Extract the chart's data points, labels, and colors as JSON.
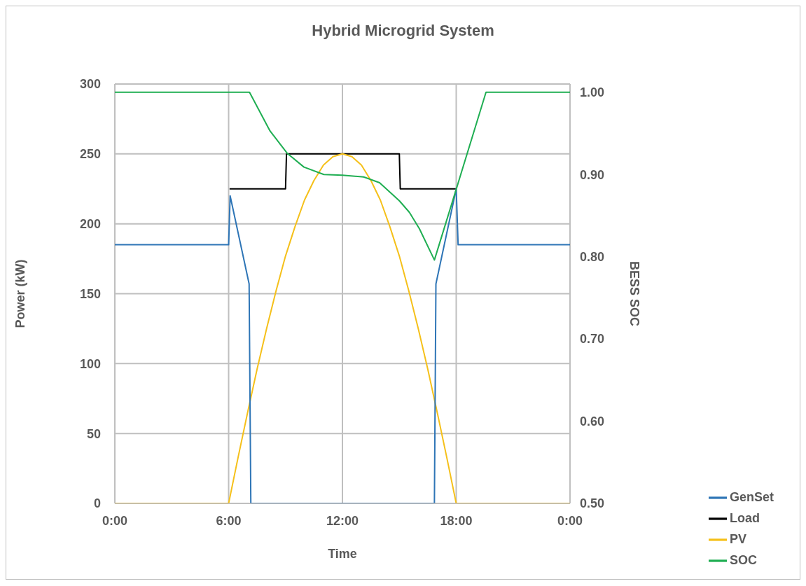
{
  "chart_data": {
    "type": "line",
    "title": "Hybrid Microgrid System",
    "xlabel": "Time",
    "ylabel": "Power (kW)",
    "y2label": "BESS SOC",
    "xlim": [
      0,
      24
    ],
    "xticks": [
      {
        "value": 0,
        "label": "0:00"
      },
      {
        "value": 6,
        "label": "6:00"
      },
      {
        "value": 12,
        "label": "12:00"
      },
      {
        "value": 18,
        "label": "18:00"
      },
      {
        "value": 24,
        "label": "0:00"
      }
    ],
    "ylim": [
      0,
      300
    ],
    "yticks": [
      0,
      50,
      100,
      150,
      200,
      250,
      300
    ],
    "y2lim": [
      0.5,
      1.01
    ],
    "y2ticks": [
      {
        "value": 0.5,
        "label": "0.50"
      },
      {
        "value": 0.6,
        "label": "0.60"
      },
      {
        "value": 0.7,
        "label": "0.70"
      },
      {
        "value": 0.8,
        "label": "0.80"
      },
      {
        "value": 0.9,
        "label": "0.90"
      },
      {
        "value": 1.0,
        "label": "1.00"
      }
    ],
    "grid": true,
    "legend": "bottom right",
    "marker": "none",
    "line_style": "solid",
    "series": [
      {
        "name": "Load",
        "color": "#000000",
        "x": [
          6.05,
          9.0,
          9.05,
          15.0,
          15.05,
          18.0
        ],
        "values": [
          225,
          225,
          250,
          250,
          225,
          225
        ]
      },
      {
        "name": "PV",
        "color": "#f5c01a",
        "x": [
          0,
          6,
          6.5,
          7,
          7.5,
          8,
          8.5,
          9,
          9.5,
          10,
          10.5,
          11,
          11.5,
          12,
          12.5,
          13,
          13.5,
          14,
          14.5,
          15,
          15.5,
          16,
          16.5,
          17,
          17.5,
          18,
          24
        ],
        "values": [
          0,
          0,
          33,
          65,
          96,
          125,
          152,
          177,
          198,
          217,
          231,
          242,
          248,
          250,
          248,
          242,
          231,
          217,
          198,
          177,
          152,
          125,
          96,
          65,
          33,
          0,
          0
        ]
      },
      {
        "name": "GenSet",
        "color": "#2e75b6",
        "x": [
          0,
          6.0,
          6.08,
          7.08,
          7.17,
          16.85,
          16.93,
          18.0,
          18.1,
          24
        ],
        "values": [
          185,
          185,
          220,
          157,
          0,
          0,
          157,
          225,
          185,
          185
        ]
      },
      {
        "name": "SOC",
        "color": "#1fae52",
        "axis": "y2",
        "x": [
          0,
          7.1,
          8.18,
          9.08,
          9.97,
          11.02,
          12.0,
          13.12,
          13.96,
          15.0,
          15.53,
          16.06,
          16.85,
          18.0,
          19.57,
          24
        ],
        "values": [
          1.0,
          1.0,
          0.953,
          0.926,
          0.909,
          0.9,
          0.899,
          0.897,
          0.89,
          0.868,
          0.854,
          0.834,
          0.796,
          0.882,
          1.0,
          1.0
        ]
      }
    ]
  }
}
